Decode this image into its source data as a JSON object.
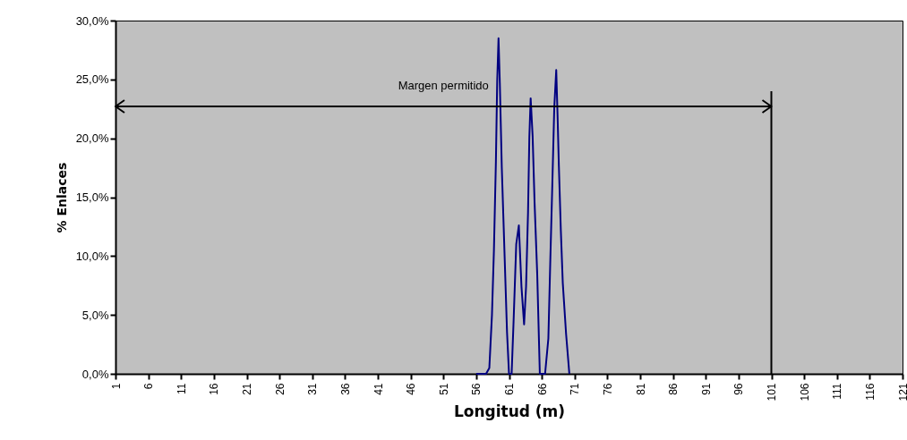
{
  "chart_data": {
    "type": "line",
    "xlabel": "Longitud (m)",
    "ylabel": "% Enlaces",
    "x": [
      56,
      57.5,
      58,
      58.4,
      58.7,
      59,
      59.2,
      59.4,
      59.6,
      59.9,
      60.3,
      60.7,
      61,
      61.4,
      61.7,
      62.1,
      62.5,
      62.9,
      63.3,
      63.6,
      63.9,
      64.1,
      64.3,
      64.6,
      64.9,
      65.3,
      65.7,
      66.5,
      67,
      67.3,
      67.6,
      67.9,
      68.2,
      68.4,
      68.6,
      68.9,
      69.2,
      69.7,
      70.2
    ],
    "series": [
      {
        "color": "#000080",
        "values": [
          0,
          0,
          0.5,
          5,
          10.5,
          18,
          24.9,
          28.5,
          24.7,
          17.5,
          10.5,
          3.5,
          0,
          0,
          4.5,
          11,
          12.6,
          7.4,
          4.2,
          7.4,
          13.7,
          20.1,
          23.4,
          20.2,
          14.5,
          8.5,
          0,
          0,
          3,
          9.7,
          16,
          22.6,
          25.8,
          22,
          17.7,
          12.2,
          7.7,
          3.4,
          0
        ]
      }
    ],
    "xlim": [
      1,
      121
    ],
    "xticks": [
      1,
      6,
      11,
      16,
      21,
      26,
      31,
      36,
      41,
      46,
      51,
      56,
      61,
      66,
      71,
      76,
      81,
      86,
      91,
      96,
      101,
      106,
      111,
      116,
      121
    ],
    "ylim": [
      0,
      30
    ],
    "yticks": [
      {
        "value": 0,
        "label": "0,0%"
      },
      {
        "value": 5,
        "label": "5,0%"
      },
      {
        "value": 10,
        "label": "10,0%"
      },
      {
        "value": 15,
        "label": "15,0%"
      },
      {
        "value": 20,
        "label": "20,0%"
      },
      {
        "value": 25,
        "label": "25,0%"
      },
      {
        "value": 30,
        "label": "30,0%"
      }
    ],
    "ref_lines": [
      {
        "axis": "x",
        "value": 101,
        "color": "#000000",
        "label": "Margen permitido"
      }
    ],
    "grid": false,
    "legend": false,
    "marker": "none",
    "line_style": "solid"
  }
}
